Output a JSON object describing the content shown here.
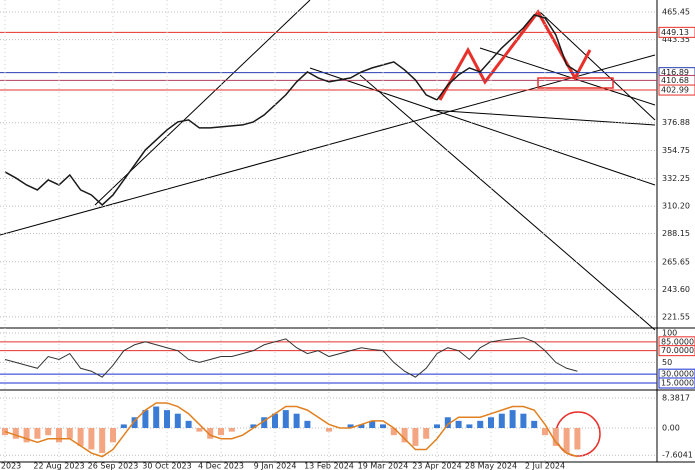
{
  "chart_data": [
    {
      "type": "line",
      "color": "#1a1a1a",
      "categories": [
        "Jul 2023",
        null,
        null,
        null,
        null,
        "22 Aug 2023",
        null,
        null,
        null,
        null,
        "26 Sep 2023",
        null,
        null,
        null,
        null,
        "30 Oct 2023",
        null,
        null,
        null,
        null,
        "4 Dec 2023",
        null,
        null,
        null,
        null,
        "9 Jan 2024",
        null,
        null,
        null,
        null,
        "13 Feb 2024",
        null,
        null,
        null,
        null,
        "19 Mar 2024",
        null,
        null,
        null,
        null,
        "23 Apr 2024",
        null,
        null,
        null,
        null,
        "28 May 2024",
        null,
        null,
        null,
        null,
        "2 Jul 2024",
        null,
        null,
        null
      ],
      "values": [
        337.5,
        332.7,
        327.1,
        323.1,
        331.1,
        327.1,
        335.1,
        323.1,
        319.1,
        311.1,
        319.1,
        331.1,
        343.1,
        355.1,
        363.1,
        371.1,
        377.5,
        379.1,
        372.7,
        372.7,
        373.5,
        374.3,
        375.1,
        377.5,
        383.1,
        391.1,
        399.1,
        409.5,
        417.5,
        412.7,
        409.5,
        411.1,
        412.7,
        417.5,
        420.7,
        423.1,
        425.5,
        419.1,
        411.1,
        399.1,
        395.1,
        407.1,
        415.1,
        420.7,
        417.5,
        427.1,
        436.7,
        444.7,
        452.7,
        463.1,
        460.6,
        447.1,
        423.1,
        417.5
      ],
      "ylim": [
        215.1,
        475.0
      ],
      "yticks": [
        465.45,
        443.35,
        376.88,
        354.75,
        332.25,
        {
          "value": 310.2,
          "label": "310.20"
        },
        288.15,
        265.65,
        {
          "value": 243.6,
          "label": "243.60"
        },
        221.55
      ],
      "levels": [
        {
          "value": 449.13,
          "color": "#e8302a"
        },
        {
          "value": 416.89,
          "color": "#2a3fb0"
        },
        {
          "value": 410.68,
          "color": "#b04060"
        },
        {
          "value": 402.99,
          "color": "#e8302a"
        }
      ]
    },
    {
      "type": "line",
      "color": "#333333",
      "values": [
        55,
        50,
        45,
        40,
        60,
        55,
        65,
        40,
        35,
        25,
        45,
        70,
        80,
        85,
        80,
        75,
        70,
        55,
        50,
        55,
        60,
        60,
        65,
        70,
        80,
        85,
        90,
        75,
        65,
        70,
        60,
        65,
        70,
        75,
        72,
        70,
        50,
        35,
        25,
        40,
        65,
        75,
        70,
        55,
        75,
        85,
        88,
        90,
        92,
        85,
        70,
        50,
        40,
        35
      ],
      "ylim": [
        6.5,
        105.1
      ],
      "yticks": [
        100,
        50
      ],
      "levels": [
        {
          "value": 85,
          "label": "85.0000",
          "color": "#e8302a"
        },
        {
          "value": 70,
          "label": "70.0000",
          "color": "#e8302a"
        },
        {
          "value": 30,
          "label": "30.0000",
          "color": "#1a2fd0"
        },
        {
          "value": 15,
          "label": "15.0000",
          "color": "#1a2fd0"
        }
      ]
    },
    {
      "type": "bar",
      "color": "#3a7bd5",
      "negative_color": "#f4a582",
      "values": [
        -2,
        -3,
        -4,
        -3,
        -2,
        -4,
        -3,
        -5,
        -6,
        -7,
        -4,
        1,
        3,
        5,
        6,
        5,
        4,
        2,
        -1,
        -3,
        -2,
        -1,
        0,
        1,
        3,
        4,
        5,
        4,
        2,
        0,
        -1,
        0,
        1,
        1,
        2,
        1,
        -2,
        -4,
        -5,
        -3,
        1,
        3,
        2,
        1,
        2,
        3,
        4,
        5,
        4,
        2,
        -2,
        -5,
        -7,
        -6
      ],
      "line": {
        "color": "#e08020",
        "values": [
          -1,
          -2,
          -3,
          -4,
          -3,
          -3,
          -3,
          -5,
          -7,
          -8,
          -6,
          -2,
          2,
          5,
          7,
          7,
          6,
          4,
          1,
          -2,
          -3,
          -3,
          -2,
          0,
          2,
          4,
          6,
          6,
          5,
          3,
          1,
          0,
          0,
          1,
          2,
          2,
          0,
          -3,
          -6,
          -6,
          -3,
          1,
          3,
          3,
          3,
          4,
          5,
          6,
          6,
          5,
          1,
          -4,
          -7,
          -8
        ]
      },
      "ylim": [
        -8.94,
        10.06
      ],
      "yticks": [
        8.3817,
        {
          "value": 0,
          "label": "0.00"
        },
        -7.6041
      ]
    }
  ]
}
